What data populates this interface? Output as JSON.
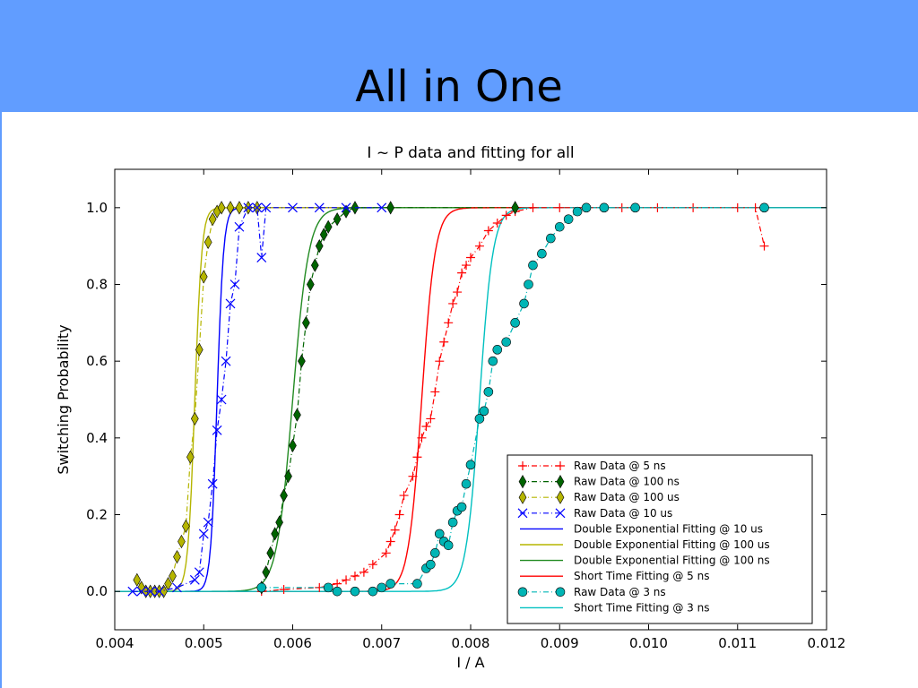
{
  "slide": {
    "title": "All in One"
  },
  "chart_data": {
    "type": "scatter",
    "title": "I ~ P data and fitting for all",
    "xlabel": "I / A",
    "ylabel": "Switching Probability",
    "xlim": [
      0.004,
      0.012
    ],
    "ylim": [
      -0.1,
      1.1
    ],
    "xticks": [
      "0.004",
      "0.005",
      "0.006",
      "0.007",
      "0.008",
      "0.009",
      "0.010",
      "0.011",
      "0.012"
    ],
    "yticks": [
      "0.0",
      "0.2",
      "0.4",
      "0.6",
      "0.8",
      "1.0"
    ],
    "legend_position": "lower-right",
    "series": [
      {
        "name": "Raw Data @ 5 ns",
        "kind": "raw",
        "marker": "plus",
        "color": "#ff0000",
        "points": [
          [
            0.00565,
            0
          ],
          [
            0.0059,
            0.005
          ],
          [
            0.0063,
            0.01
          ],
          [
            0.0065,
            0.02
          ],
          [
            0.0066,
            0.03
          ],
          [
            0.0067,
            0.04
          ],
          [
            0.0068,
            0.05
          ],
          [
            0.0069,
            0.07
          ],
          [
            0.00705,
            0.1
          ],
          [
            0.0071,
            0.13
          ],
          [
            0.00715,
            0.16
          ],
          [
            0.0072,
            0.2
          ],
          [
            0.00725,
            0.25
          ],
          [
            0.00735,
            0.3
          ],
          [
            0.0074,
            0.35
          ],
          [
            0.00745,
            0.4
          ],
          [
            0.0075,
            0.43
          ],
          [
            0.00755,
            0.45
          ],
          [
            0.0076,
            0.52
          ],
          [
            0.00765,
            0.6
          ],
          [
            0.0077,
            0.65
          ],
          [
            0.00775,
            0.7
          ],
          [
            0.0078,
            0.75
          ],
          [
            0.00785,
            0.78
          ],
          [
            0.0079,
            0.83
          ],
          [
            0.00795,
            0.85
          ],
          [
            0.008,
            0.87
          ],
          [
            0.0081,
            0.9
          ],
          [
            0.0082,
            0.94
          ],
          [
            0.0083,
            0.96
          ],
          [
            0.0084,
            0.98
          ],
          [
            0.0085,
            0.99
          ],
          [
            0.0087,
            1.0
          ],
          [
            0.009,
            1.0
          ],
          [
            0.0093,
            1.0
          ],
          [
            0.0097,
            1.0
          ],
          [
            0.0101,
            1.0
          ],
          [
            0.0105,
            1.0
          ],
          [
            0.011,
            1.0
          ],
          [
            0.0112,
            1.0
          ],
          [
            0.0113,
            0.9
          ]
        ]
      },
      {
        "name": "Raw Data @ 100 ns",
        "kind": "raw",
        "marker": "diamond",
        "color": "#006400",
        "points": [
          [
            0.00565,
            0.01
          ],
          [
            0.0057,
            0.05
          ],
          [
            0.00575,
            0.1
          ],
          [
            0.0058,
            0.15
          ],
          [
            0.00585,
            0.18
          ],
          [
            0.0059,
            0.25
          ],
          [
            0.00595,
            0.3
          ],
          [
            0.006,
            0.38
          ],
          [
            0.00605,
            0.46
          ],
          [
            0.0061,
            0.6
          ],
          [
            0.00615,
            0.7
          ],
          [
            0.0062,
            0.8
          ],
          [
            0.00625,
            0.85
          ],
          [
            0.0063,
            0.9
          ],
          [
            0.00635,
            0.93
          ],
          [
            0.0064,
            0.95
          ],
          [
            0.0065,
            0.97
          ],
          [
            0.0066,
            0.99
          ],
          [
            0.0067,
            1.0
          ],
          [
            0.0071,
            1.0
          ],
          [
            0.0085,
            1.0
          ]
        ]
      },
      {
        "name": "Raw Data @ 100 us",
        "kind": "raw",
        "marker": "diamond",
        "color": "#b5b500",
        "points": [
          [
            0.00425,
            0.03
          ],
          [
            0.0043,
            0.01
          ],
          [
            0.00435,
            0.0
          ],
          [
            0.0044,
            0.0
          ],
          [
            0.00445,
            0.0
          ],
          [
            0.0045,
            0.0
          ],
          [
            0.00455,
            0.0
          ],
          [
            0.0046,
            0.02
          ],
          [
            0.00465,
            0.04
          ],
          [
            0.0047,
            0.09
          ],
          [
            0.00475,
            0.13
          ],
          [
            0.0048,
            0.17
          ],
          [
            0.00485,
            0.35
          ],
          [
            0.0049,
            0.45
          ],
          [
            0.00495,
            0.63
          ],
          [
            0.005,
            0.82
          ],
          [
            0.00505,
            0.91
          ],
          [
            0.0051,
            0.97
          ],
          [
            0.00515,
            0.99
          ],
          [
            0.0052,
            1.0
          ],
          [
            0.0053,
            1.0
          ],
          [
            0.0054,
            1.0
          ],
          [
            0.0055,
            1.0
          ],
          [
            0.0056,
            1.0
          ]
        ]
      },
      {
        "name": "Raw Data @ 10 us",
        "kind": "raw",
        "marker": "x",
        "color": "#0000ff",
        "points": [
          [
            0.0042,
            0.0
          ],
          [
            0.0043,
            0.0
          ],
          [
            0.0044,
            0.0
          ],
          [
            0.0045,
            0.0
          ],
          [
            0.0047,
            0.01
          ],
          [
            0.0049,
            0.03
          ],
          [
            0.00495,
            0.05
          ],
          [
            0.005,
            0.15
          ],
          [
            0.00505,
            0.18
          ],
          [
            0.0051,
            0.28
          ],
          [
            0.00515,
            0.42
          ],
          [
            0.0052,
            0.5
          ],
          [
            0.00525,
            0.6
          ],
          [
            0.0053,
            0.75
          ],
          [
            0.00535,
            0.8
          ],
          [
            0.0054,
            0.95
          ],
          [
            0.0055,
            1.0
          ],
          [
            0.0056,
            1.0
          ],
          [
            0.00565,
            0.87
          ],
          [
            0.0057,
            1.0
          ],
          [
            0.006,
            1.0
          ],
          [
            0.0063,
            1.0
          ],
          [
            0.0066,
            1.0
          ],
          [
            0.007,
            1.0
          ]
        ]
      },
      {
        "name": "Double Exponential Fitting @ 10 us",
        "kind": "fit",
        "color": "#0000ff",
        "x0": 0.00515,
        "w": 0.00012
      },
      {
        "name": "Double Exponential Fitting @ 100 us",
        "kind": "fit",
        "color": "#b5b500",
        "x0": 0.0049,
        "w": 0.00013
      },
      {
        "name": "Double Exponential Fitting @ 100 ns",
        "kind": "fit",
        "color": "#228b22",
        "x0": 0.006,
        "w": 0.0003
      },
      {
        "name": "Short Time Fitting @ 5 ns",
        "kind": "fit",
        "color": "#ff0000",
        "x0": 0.00745,
        "w": 0.00025
      },
      {
        "name": "Raw Data @ 3 ns",
        "kind": "raw",
        "marker": "circle",
        "color": "#00b5b5",
        "points": [
          [
            0.00565,
            0.01
          ],
          [
            0.0064,
            0.01
          ],
          [
            0.0065,
            0.0
          ],
          [
            0.0067,
            0.0
          ],
          [
            0.0069,
            0.0
          ],
          [
            0.007,
            0.01
          ],
          [
            0.0071,
            0.02
          ],
          [
            0.0074,
            0.02
          ],
          [
            0.0075,
            0.06
          ],
          [
            0.00755,
            0.07
          ],
          [
            0.0076,
            0.1
          ],
          [
            0.00765,
            0.15
          ],
          [
            0.0077,
            0.13
          ],
          [
            0.00775,
            0.12
          ],
          [
            0.0078,
            0.18
          ],
          [
            0.00785,
            0.21
          ],
          [
            0.0079,
            0.22
          ],
          [
            0.00795,
            0.28
          ],
          [
            0.008,
            0.33
          ],
          [
            0.0081,
            0.45
          ],
          [
            0.00815,
            0.47
          ],
          [
            0.0082,
            0.52
          ],
          [
            0.00825,
            0.6
          ],
          [
            0.0083,
            0.63
          ],
          [
            0.0084,
            0.65
          ],
          [
            0.0085,
            0.7
          ],
          [
            0.0086,
            0.75
          ],
          [
            0.00865,
            0.8
          ],
          [
            0.0087,
            0.85
          ],
          [
            0.0088,
            0.88
          ],
          [
            0.0089,
            0.92
          ],
          [
            0.009,
            0.95
          ],
          [
            0.0091,
            0.97
          ],
          [
            0.0092,
            0.99
          ],
          [
            0.0093,
            1.0
          ],
          [
            0.0095,
            1.0
          ],
          [
            0.00985,
            1.0
          ],
          [
            0.0113,
            1.0
          ]
        ]
      },
      {
        "name": "Short Time Fitting @ 3 ns",
        "kind": "fit",
        "color": "#00c0c0",
        "x0": 0.0081,
        "w": 0.00025
      }
    ]
  }
}
